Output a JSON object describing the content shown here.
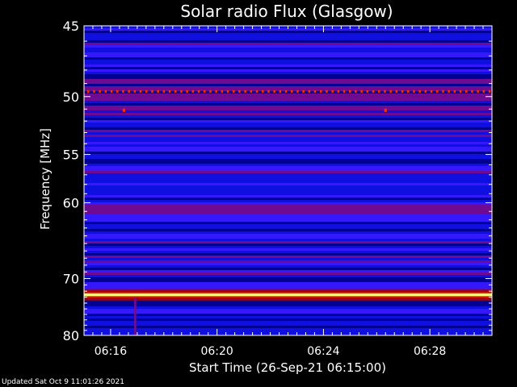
{
  "chart_data": {
    "type": "heatmap",
    "title": "Solar radio Flux (Glasgow)",
    "ylabel": "Frequency [MHz]",
    "xlabel": "Start Time (26-Sep-21 06:15:00)",
    "ylim": [
      45,
      80
    ],
    "y_scale": "log",
    "x_range": [
      "06:15:00",
      "06:30:20"
    ],
    "y_ticks": [
      {
        "value": 45,
        "label": "45"
      },
      {
        "value": 50,
        "label": "50"
      },
      {
        "value": 55,
        "label": "55"
      },
      {
        "value": 60,
        "label": "60"
      },
      {
        "value": 70,
        "label": "70"
      },
      {
        "value": 80,
        "label": "80"
      }
    ],
    "x_ticks": [
      {
        "value": "06:16",
        "label": "06:16"
      },
      {
        "value": "06:20",
        "label": "06:20"
      },
      {
        "value": "06:24",
        "label": "06:24"
      },
      {
        "value": "06:28",
        "label": "06:28"
      }
    ],
    "features": {
      "strong_band_mhz": 72.6,
      "interference_line_mhz": 49.6,
      "spot_events": [
        {
          "time": "06:16:30",
          "frequency_mhz": 51.1
        },
        {
          "time": "06:26:20",
          "frequency_mhz": 51.1
        }
      ],
      "vertical_streak": {
        "time": "06:16:55",
        "frequency_range_mhz": [
          73,
          80
        ]
      }
    },
    "colormap": [
      "#00008c",
      "#1010e0",
      "#3a1aff",
      "#7a0a8a",
      "#a00010",
      "#ff3000",
      "#ffff80"
    ]
  },
  "footer": {
    "updated": "Updated Sat Oct  9 11:01:26 2021"
  }
}
